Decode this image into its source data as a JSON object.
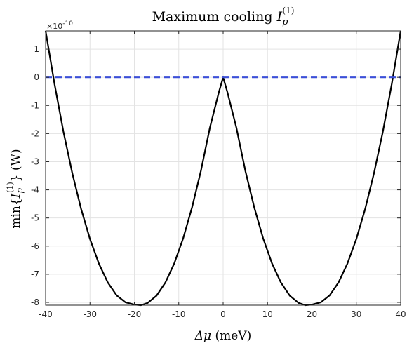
{
  "chart_data": {
    "type": "line",
    "title_text": "Maximum cooling ",
    "title_symbol": "I",
    "title_sub": "p",
    "title_sup": "(1)",
    "xlabel": "Δμ (meV)",
    "xlabel_symbol": "Δμ",
    "xlabel_unit": " (meV)",
    "ylabel_prefix": "min{",
    "ylabel_symbol": "I",
    "ylabel_sub": "p",
    "ylabel_sup": "(1)",
    "ylabel_suffix": "} (W)",
    "y_exponent_base": "×10",
    "y_exponent_power": "-10",
    "xlim": [
      -40,
      40
    ],
    "ylim": [
      -8.1,
      1.65
    ],
    "xticks": [
      -40,
      -30,
      -20,
      -10,
      0,
      10,
      20,
      30,
      40
    ],
    "yticks": [
      1,
      0,
      -1,
      -2,
      -3,
      -4,
      -5,
      -6,
      -7,
      -8
    ],
    "grid": true,
    "series": [
      {
        "color": "#000000",
        "style": "solid",
        "x": [
          -40,
          -38,
          -36,
          -34,
          -32,
          -30,
          -28,
          -26,
          -24,
          -22,
          -20,
          -18.5,
          -17,
          -15,
          -13,
          -11,
          -9,
          -7,
          -5,
          -3,
          -1,
          0,
          1,
          3,
          5,
          7,
          9,
          11,
          13,
          15,
          17,
          18.5,
          20,
          22,
          24,
          26,
          28,
          30,
          32,
          34,
          36,
          38,
          40
        ],
        "y": [
          1.65,
          -0.23,
          -1.92,
          -3.4,
          -4.68,
          -5.75,
          -6.62,
          -7.29,
          -7.75,
          -8.0,
          -8.08,
          -8.1,
          -8.02,
          -7.76,
          -7.29,
          -6.61,
          -5.72,
          -4.62,
          -3.32,
          -1.8,
          -0.55,
          0.0,
          -0.55,
          -1.8,
          -3.32,
          -4.62,
          -5.72,
          -6.61,
          -7.29,
          -7.76,
          -8.02,
          -8.1,
          -8.08,
          -8.0,
          -7.75,
          -7.29,
          -6.62,
          -5.75,
          -4.68,
          -3.4,
          -1.92,
          -0.23,
          1.65
        ]
      },
      {
        "color": "#3b4fd8",
        "style": "dashed",
        "x": [
          -40,
          40
        ],
        "y": [
          0,
          0
        ]
      }
    ]
  }
}
